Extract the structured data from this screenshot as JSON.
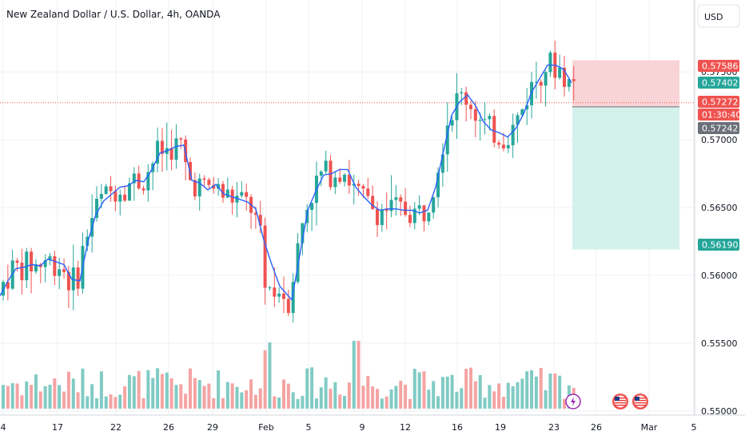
{
  "title": "New Zealand Dollar / U.S. Dollar, 4h, OANDA",
  "currency_button": "USD",
  "colors": {
    "up": "#26a69a",
    "down": "#ef5350",
    "ma": "#2962ff",
    "vol_up": "#80cbc4",
    "vol_down": "#f5a3a3",
    "stop_zone": "#f7c6c9",
    "target_zone": "#cdeee7",
    "grid": "#eef0f3"
  },
  "chart_data": {
    "type": "candlestick",
    "title": "New Zealand Dollar / U.S. Dollar, 4h, OANDA",
    "xlabel": "",
    "ylabel": "",
    "ylim": [
      0.5497,
      0.5803
    ],
    "y_ticks": [
      "0.57500",
      "0.57000",
      "0.56500",
      "0.56000",
      "0.55500",
      "0.55000"
    ],
    "y_tick_values": [
      0.575,
      0.57,
      0.565,
      0.56,
      0.555,
      0.55
    ],
    "x_ticks": [
      "4",
      "17",
      "22",
      "26",
      "29",
      "Feb",
      "5",
      "9",
      "12",
      "16",
      "19",
      "23",
      "26",
      "Mar",
      "5"
    ],
    "grid": true,
    "price_tags": [
      {
        "label": "0.57586",
        "value": 0.57586,
        "color": "#ef5350"
      },
      {
        "label": "0.57402",
        "value": 0.57402,
        "color": "#26a69a"
      },
      {
        "label": "0.57272",
        "value": 0.57272,
        "color": "#ef5350"
      },
      {
        "label": "01:30:40",
        "value": 0.57272,
        "color": "#ef5350"
      },
      {
        "label": "0.57242",
        "value": 0.57242,
        "color": "#6b6f77"
      },
      {
        "label": "0.56190",
        "value": 0.5619,
        "color": "#26a69a"
      }
    ],
    "position": {
      "entry": 0.57242,
      "stop": 0.57586,
      "target": 0.5619
    },
    "current_price": 0.57272,
    "ma_series": [
      [
        0,
        0.5585
      ],
      [
        10,
        0.5596
      ],
      [
        20,
        0.5605
      ],
      [
        30,
        0.5606
      ],
      [
        40,
        0.5608
      ],
      [
        50,
        0.5607
      ],
      [
        60,
        0.5612
      ],
      [
        70,
        0.561
      ],
      [
        80,
        0.5608
      ],
      [
        90,
        0.5597
      ],
      [
        100,
        0.5596
      ],
      [
        110,
        0.5625
      ],
      [
        120,
        0.5645
      ],
      [
        130,
        0.5655
      ],
      [
        140,
        0.566
      ],
      [
        150,
        0.5665
      ],
      [
        160,
        0.5666
      ],
      [
        170,
        0.567
      ],
      [
        180,
        0.5669
      ],
      [
        190,
        0.5678
      ],
      [
        200,
        0.569
      ],
      [
        210,
        0.5692
      ],
      [
        220,
        0.5695
      ],
      [
        230,
        0.5696
      ],
      [
        240,
        0.567
      ],
      [
        250,
        0.5668
      ],
      [
        260,
        0.5663
      ],
      [
        270,
        0.5667
      ],
      [
        280,
        0.566
      ],
      [
        290,
        0.5658
      ],
      [
        300,
        0.5656
      ],
      [
        310,
        0.5654
      ],
      [
        320,
        0.5649
      ],
      [
        330,
        0.5626
      ],
      [
        340,
        0.5608
      ],
      [
        350,
        0.5592
      ],
      [
        365,
        0.5582
      ],
      [
        375,
        0.5615
      ],
      [
        385,
        0.5648
      ],
      [
        395,
        0.5662
      ],
      [
        405,
        0.5674
      ],
      [
        415,
        0.5675
      ],
      [
        425,
        0.5678
      ],
      [
        435,
        0.5678
      ],
      [
        445,
        0.5665
      ],
      [
        455,
        0.5658
      ],
      [
        465,
        0.5652
      ],
      [
        475,
        0.5648
      ],
      [
        485,
        0.5649
      ],
      [
        495,
        0.5649
      ],
      [
        505,
        0.5648
      ],
      [
        515,
        0.5648
      ],
      [
        525,
        0.5646
      ],
      [
        535,
        0.5648
      ],
      [
        545,
        0.5665
      ],
      [
        555,
        0.5692
      ],
      [
        565,
        0.5718
      ],
      [
        575,
        0.5728
      ],
      [
        585,
        0.5733
      ],
      [
        595,
        0.5725
      ],
      [
        605,
        0.5713
      ],
      [
        615,
        0.5707
      ],
      [
        625,
        0.5705
      ],
      [
        635,
        0.5702
      ],
      [
        645,
        0.5708
      ],
      [
        655,
        0.5719
      ],
      [
        665,
        0.5735
      ],
      [
        675,
        0.5745
      ],
      [
        685,
        0.5755
      ],
      [
        695,
        0.5755
      ],
      [
        705,
        0.5752
      ],
      [
        715,
        0.5742
      ]
    ],
    "markers": [
      "lightning",
      "us-flag",
      "us-flag"
    ]
  }
}
